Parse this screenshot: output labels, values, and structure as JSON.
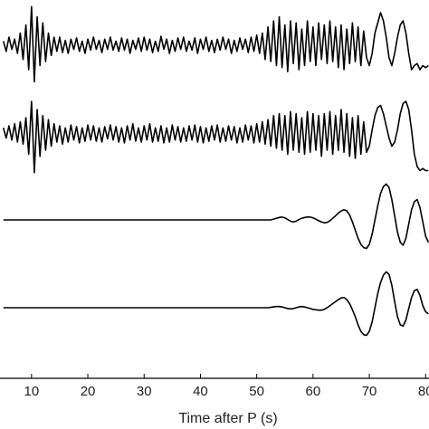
{
  "chart_data": {
    "type": "line",
    "x_label": "Time after P (s)",
    "xlim": [
      4.4,
      80.6
    ],
    "xticks": [
      10,
      20,
      30,
      40,
      50,
      60,
      70,
      80
    ],
    "x": [
      5,
      5.5,
      6,
      6.5,
      7,
      7.5,
      8,
      8.5,
      9,
      9.5,
      10,
      10.5,
      11,
      11.5,
      12,
      12.5,
      13,
      13.5,
      14,
      14.5,
      15,
      15.5,
      16,
      16.5,
      17,
      17.5,
      18,
      18.5,
      19,
      19.5,
      20,
      20.5,
      21,
      21.5,
      22,
      22.5,
      23,
      23.5,
      24,
      24.5,
      25,
      25.5,
      26,
      26.5,
      27,
      27.5,
      28,
      28.5,
      29,
      29.5,
      30,
      30.5,
      31,
      31.5,
      32,
      32.5,
      33,
      33.5,
      34,
      34.5,
      35,
      35.5,
      36,
      36.5,
      37,
      37.5,
      38,
      38.5,
      39,
      39.5,
      40,
      40.5,
      41,
      41.5,
      42,
      42.5,
      43,
      43.5,
      44,
      44.5,
      45,
      45.5,
      46,
      46.5,
      47,
      47.5,
      48,
      48.5,
      49,
      49.5,
      50,
      50.5,
      51,
      51.5,
      52,
      52.5,
      53,
      53.5,
      54,
      54.5,
      55,
      55.5,
      56,
      56.5,
      57,
      57.5,
      58,
      58.5,
      59,
      59.5,
      60,
      60.5,
      61,
      61.5,
      62,
      62.5,
      63,
      63.5,
      64,
      64.5,
      65,
      65.5,
      66,
      66.5,
      67,
      67.5,
      68,
      68.5,
      69,
      69.5,
      70,
      70.5,
      71,
      71.5,
      72,
      72.5,
      73,
      73.5,
      74,
      74.5,
      75,
      75.5,
      76,
      76.5,
      77,
      77.5,
      78,
      78.5,
      79,
      79.5,
      80,
      80.5
    ],
    "series": [
      {
        "color": "#000000",
        "values": [
          0.1,
          -0.15,
          0.2,
          -0.1,
          0.15,
          -0.2,
          0.3,
          -0.35,
          0.5,
          -0.6,
          0.95,
          -0.9,
          0.7,
          -0.5,
          0.55,
          -0.4,
          0.3,
          -0.25,
          0.2,
          -0.15,
          0.2,
          -0.18,
          0.12,
          -0.2,
          0.15,
          -0.1,
          0.18,
          -0.15,
          0.1,
          -0.2,
          0.15,
          -0.12,
          0.2,
          -0.1,
          0.12,
          -0.18,
          0.15,
          -0.1,
          0.2,
          -0.12,
          0.1,
          -0.15,
          0.18,
          -0.12,
          0.15,
          -0.2,
          0.12,
          -0.1,
          0.18,
          -0.15,
          0.2,
          -0.12,
          0.15,
          -0.18,
          0.1,
          -0.15,
          0.22,
          -0.1,
          0.15,
          -0.2,
          0.12,
          -0.15,
          0.18,
          -0.1,
          0.2,
          -0.15,
          0.1,
          -0.12,
          0.18,
          -0.2,
          0.15,
          -0.1,
          0.2,
          -0.15,
          0.12,
          -0.18,
          0.15,
          -0.12,
          0.2,
          -0.1,
          0.15,
          -0.2,
          0.12,
          -0.15,
          0.18,
          -0.1,
          0.15,
          -0.18,
          0.2,
          -0.15,
          0.25,
          -0.2,
          0.3,
          -0.35,
          0.45,
          -0.4,
          0.6,
          -0.5,
          0.7,
          -0.55,
          0.5,
          -0.65,
          0.6,
          -0.45,
          0.55,
          -0.6,
          0.4,
          -0.5,
          0.6,
          -0.4,
          0.45,
          -0.5,
          0.55,
          -0.35,
          0.5,
          -0.45,
          0.6,
          -0.4,
          0.45,
          -0.55,
          0.5,
          -0.6,
          0.4,
          -0.45,
          0.55,
          -0.4,
          0.45,
          -0.5,
          0.35,
          -0.3,
          -0.5,
          -0.2,
          0.3,
          0.55,
          0.8,
          0.6,
          0.2,
          -0.3,
          -0.5,
          -0.2,
          0.2,
          0.5,
          0.6,
          0.3,
          -0.2,
          -0.6,
          -0.5,
          -0.45,
          -0.6,
          -0.5,
          -0.55,
          -0.5
        ]
      },
      {
        "color": "#000000",
        "values": [
          0.15,
          -0.1,
          0.2,
          -0.15,
          0.25,
          -0.2,
          0.3,
          -0.25,
          0.4,
          -0.5,
          0.8,
          -0.95,
          0.6,
          -0.55,
          0.45,
          -0.4,
          0.35,
          -0.3,
          0.25,
          -0.2,
          0.2,
          -0.25,
          0.15,
          -0.2,
          0.22,
          -0.15,
          0.18,
          -0.22,
          0.15,
          -0.18,
          0.22,
          -0.15,
          0.2,
          -0.18,
          0.15,
          -0.2,
          0.18,
          -0.12,
          0.22,
          -0.15,
          0.18,
          -0.2,
          0.15,
          -0.22,
          0.2,
          -0.15,
          0.25,
          -0.18,
          0.15,
          -0.2,
          0.2,
          -0.15,
          0.25,
          -0.2,
          0.15,
          -0.18,
          0.2,
          -0.22,
          0.15,
          -0.2,
          0.22,
          -0.15,
          0.18,
          -0.2,
          0.15,
          -0.18,
          0.2,
          -0.15,
          0.22,
          -0.2,
          0.18,
          -0.22,
          0.15,
          -0.18,
          0.2,
          -0.15,
          0.22,
          -0.2,
          0.15,
          -0.18,
          0.2,
          -0.15,
          0.18,
          -0.22,
          0.15,
          -0.2,
          0.22,
          -0.15,
          0.2,
          -0.22,
          0.25,
          -0.2,
          0.3,
          -0.25,
          0.35,
          -0.3,
          0.45,
          -0.35,
          0.5,
          -0.4,
          0.45,
          -0.5,
          0.55,
          -0.4,
          0.5,
          -0.45,
          0.4,
          -0.5,
          0.55,
          -0.45,
          0.5,
          -0.4,
          0.45,
          -0.55,
          0.5,
          -0.4,
          0.55,
          -0.5,
          0.45,
          -0.4,
          0.6,
          -0.45,
          0.5,
          -0.55,
          0.4,
          -0.6,
          0.45,
          -0.5,
          0.3,
          -0.45,
          -0.3,
          0.1,
          0.45,
          0.65,
          0.7,
          0.5,
          0.2,
          -0.1,
          -0.3,
          -0.2,
          0.1,
          0.5,
          0.75,
          0.8,
          0.6,
          0.1,
          -0.5,
          -0.8,
          -0.9,
          -0.85,
          -0.9,
          -0.9
        ]
      },
      {
        "color": "#000000",
        "values": [
          0,
          0,
          0,
          0,
          0,
          0,
          0,
          0,
          0,
          0,
          0,
          0,
          0,
          0,
          0,
          0,
          0,
          0,
          0,
          0,
          0,
          0,
          0,
          0,
          0,
          0,
          0,
          0,
          0,
          0,
          0,
          0,
          0,
          0,
          0,
          0,
          0,
          0,
          0,
          0,
          0,
          0,
          0,
          0,
          0,
          0,
          0,
          0,
          0,
          0,
          0,
          0,
          0,
          0,
          0,
          0,
          0,
          0,
          0,
          0,
          0,
          0,
          0,
          0,
          0,
          0,
          0,
          0,
          0,
          0,
          0,
          0,
          0,
          0,
          0,
          0,
          0,
          0,
          0,
          0,
          0,
          0,
          0,
          0,
          0,
          0,
          0,
          0,
          0,
          0,
          0,
          0,
          0,
          0,
          0,
          0,
          0.02,
          0.04,
          0.06,
          0.07,
          0.05,
          0.01,
          -0.03,
          -0.05,
          -0.03,
          0.01,
          0.04,
          0.06,
          0.07,
          0.07,
          0.05,
          0.02,
          -0.02,
          -0.05,
          -0.07,
          -0.06,
          -0.02,
          0.04,
          0.1,
          0.17,
          0.22,
          0.25,
          0.22,
          0.12,
          -0.05,
          -0.25,
          -0.45,
          -0.6,
          -0.68,
          -0.7,
          -0.6,
          -0.35,
          0.0,
          0.35,
          0.65,
          0.82,
          0.88,
          0.8,
          0.5,
          0.1,
          -0.3,
          -0.55,
          -0.62,
          -0.45,
          -0.1,
          0.25,
          0.45,
          0.5,
          0.3,
          -0.05,
          -0.4,
          -0.55
        ]
      },
      {
        "color": "#000000",
        "values": [
          0,
          0,
          0,
          0,
          0,
          0,
          0,
          0,
          0,
          0,
          0,
          0,
          0,
          0,
          0,
          0,
          0,
          0,
          0,
          0,
          0,
          0,
          0,
          0,
          0,
          0,
          0,
          0,
          0,
          0,
          0,
          0,
          0,
          0,
          0,
          0,
          0,
          0,
          0,
          0,
          0,
          0,
          0,
          0,
          0,
          0,
          0,
          0,
          0,
          0,
          0,
          0,
          0,
          0,
          0,
          0,
          0,
          0,
          0,
          0,
          0,
          0,
          0,
          0,
          0,
          0,
          0,
          0,
          0,
          0,
          0,
          0,
          0,
          0,
          0,
          0,
          0,
          0,
          0,
          0,
          0,
          0,
          0,
          0,
          0,
          0,
          0,
          0,
          0,
          0,
          0,
          0,
          0,
          0,
          0,
          0.01,
          0.02,
          0.03,
          0.03,
          0.02,
          0,
          -0.02,
          -0.03,
          -0.02,
          0,
          0.02,
          0.03,
          0.02,
          0,
          -0.02,
          -0.04,
          -0.05,
          -0.06,
          -0.06,
          -0.04,
          0.0,
          0.05,
          0.1,
          0.15,
          0.2,
          0.24,
          0.25,
          0.2,
          0.1,
          -0.05,
          -0.22,
          -0.42,
          -0.58,
          -0.66,
          -0.68,
          -0.58,
          -0.35,
          0.0,
          0.35,
          0.62,
          0.8,
          0.88,
          0.82,
          0.55,
          0.15,
          -0.22,
          -0.42,
          -0.45,
          -0.3,
          -0.02,
          0.25,
          0.42,
          0.45,
          0.3,
          0.05,
          -0.1,
          -0.15
        ]
      }
    ]
  }
}
